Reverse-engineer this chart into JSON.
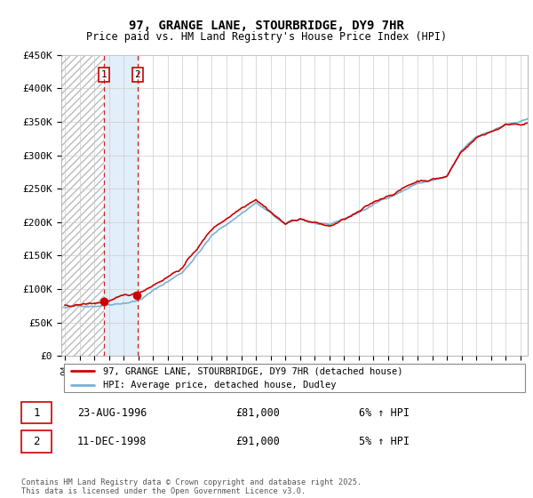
{
  "title": "97, GRANGE LANE, STOURBRIDGE, DY9 7HR",
  "subtitle": "Price paid vs. HM Land Registry's House Price Index (HPI)",
  "footer": "Contains HM Land Registry data © Crown copyright and database right 2025.\nThis data is licensed under the Open Government Licence v3.0.",
  "legend_line1": "97, GRANGE LANE, STOURBRIDGE, DY9 7HR (detached house)",
  "legend_line2": "HPI: Average price, detached house, Dudley",
  "sale1_label": "1",
  "sale1_date": "23-AUG-1996",
  "sale1_price": "£81,000",
  "sale1_hpi": "6% ↑ HPI",
  "sale2_label": "2",
  "sale2_date": "11-DEC-1998",
  "sale2_price": "£91,000",
  "sale2_hpi": "5% ↑ HPI",
  "sale1_year": 1996.635,
  "sale1_value": 81000,
  "sale2_year": 1998.95,
  "sale2_value": 91000,
  "ylim": [
    0,
    450000
  ],
  "xlim_start": 1993.75,
  "xlim_end": 2025.5,
  "red_color": "#cc0000",
  "blue_color": "#7ab0d4",
  "hatch_edgecolor": "#bbbbbb",
  "fill_color": "#d6e8f7",
  "grid_color": "#cccccc",
  "bg_color": "#ffffff",
  "annotation_box_color": "#cc0000"
}
